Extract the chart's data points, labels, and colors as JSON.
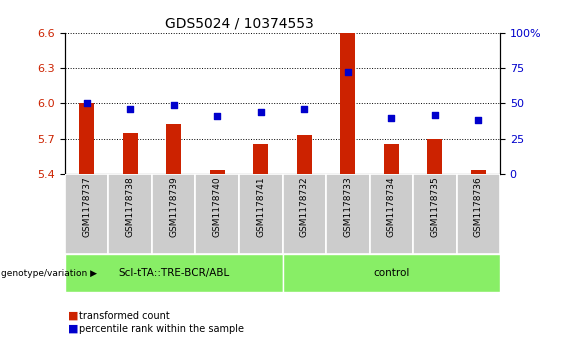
{
  "title": "GDS5024 / 10374553",
  "samples": [
    "GSM1178737",
    "GSM1178738",
    "GSM1178739",
    "GSM1178740",
    "GSM1178741",
    "GSM1178732",
    "GSM1178733",
    "GSM1178734",
    "GSM1178735",
    "GSM1178736"
  ],
  "bar_values": [
    6.0,
    5.75,
    5.83,
    5.44,
    5.66,
    5.73,
    6.6,
    5.66,
    5.7,
    5.44
  ],
  "dot_values": [
    50,
    46,
    49,
    41,
    44,
    46,
    72,
    40,
    42,
    38
  ],
  "ylim_left": [
    5.4,
    6.6
  ],
  "ylim_right": [
    0,
    100
  ],
  "yticks_left": [
    5.4,
    5.7,
    6.0,
    6.3,
    6.6
  ],
  "yticks_right": [
    0,
    25,
    50,
    75,
    100
  ],
  "bar_color": "#cc2200",
  "dot_color": "#0000cc",
  "group1_label": "Scl-tTA::TRE-BCR/ABL",
  "group2_label": "control",
  "group1_count": 5,
  "group2_count": 5,
  "group_bg_color": "#88ee66",
  "sample_bg_color": "#cccccc",
  "legend_bar_label": "transformed count",
  "legend_dot_label": "percentile rank within the sample",
  "genotype_label": "genotype/variation",
  "bar_width": 0.35,
  "title_fontsize": 10,
  "tick_fontsize": 8,
  "sample_fontsize": 6.5,
  "group_fontsize": 7.5,
  "legend_fontsize": 7
}
